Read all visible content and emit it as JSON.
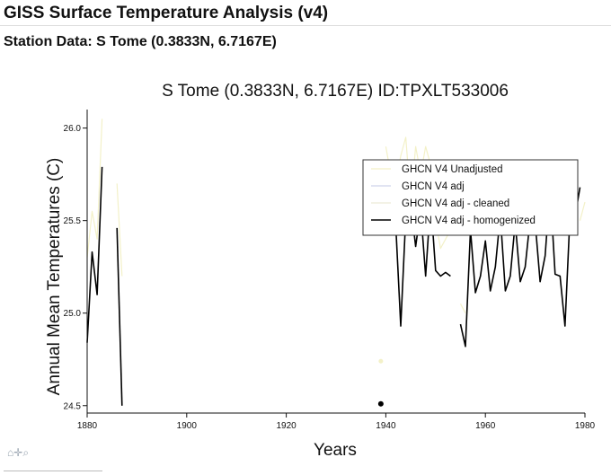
{
  "header": {
    "title": "GISS Surface Temperature Analysis (v4)",
    "subtitle": "Station Data: S Tome (0.3833N, 6.7167E)"
  },
  "toolbar": {
    "home_icon": "⌂",
    "pan_icon": "✛",
    "zoom_icon": "⌕"
  },
  "chart_data": {
    "type": "line",
    "title": "S Tome (0.3833N, 6.7167E) ID:TPXLT533006",
    "xlabel": "Years",
    "ylabel": "Annual Mean Temperatures (C)",
    "xlim": [
      1880,
      1980
    ],
    "ylim": [
      24.46,
      26.1
    ],
    "xticks": [
      1880,
      1900,
      1920,
      1940,
      1960,
      1980
    ],
    "yticks": [
      24.5,
      25.0,
      25.5,
      26.0
    ],
    "ytick_labels": [
      "24.5",
      "25.0",
      "25.5",
      "26.0"
    ],
    "legend_position": "top-right",
    "grid": false,
    "series": [
      {
        "name": "GHCN V4 Unadjusted",
        "color": "#f3f1c8",
        "width": 1.2,
        "segments": [
          [
            [
              1880,
              25.3
            ],
            [
              1881,
              25.55
            ],
            [
              1882,
              25.4
            ],
            [
              1883,
              26.05
            ]
          ],
          [
            [
              1886,
              25.7
            ],
            [
              1887,
              25.2
            ]
          ],
          [
            [
              1940,
              25.9
            ],
            [
              1941,
              25.75
            ],
            [
              1942,
              25.7
            ],
            [
              1943,
              25.85
            ],
            [
              1944,
              25.95
            ],
            [
              1945,
              25.6
            ],
            [
              1946,
              25.9
            ],
            [
              1947,
              25.75
            ],
            [
              1948,
              25.9
            ],
            [
              1949,
              25.8
            ],
            [
              1950,
              25.5
            ],
            [
              1951,
              25.35
            ],
            [
              1952,
              25.4
            ],
            [
              1953,
              25.45
            ],
            [
              1954,
              25.45
            ]
          ],
          [
            [
              1955,
              25.05
            ],
            [
              1956,
              25.0
            ]
          ],
          [
            [
              1979,
              25.5
            ],
            [
              1980,
              25.6
            ]
          ]
        ],
        "points": [
          [
            1939,
            24.74
          ]
        ]
      },
      {
        "name": "GHCN V4 adj",
        "color": "#cfd3ea",
        "width": 1.0,
        "segments": [],
        "points": []
      },
      {
        "name": "GHCN V4 adj - cleaned",
        "color": "#ece9d6",
        "width": 1.0,
        "segments": [],
        "points": []
      },
      {
        "name": "GHCN V4 adj - homogenized",
        "color": "#000000",
        "width": 1.6,
        "segments": [
          [
            [
              1880,
              24.84
            ],
            [
              1881,
              25.33
            ],
            [
              1882,
              25.1
            ],
            [
              1883,
              25.79
            ]
          ],
          [
            [
              1886,
              25.46
            ],
            [
              1887,
              24.5
            ]
          ],
          [
            [
              1941,
              25.51
            ],
            [
              1942,
              25.47
            ],
            [
              1943,
              24.93
            ],
            [
              1944,
              25.52
            ],
            [
              1945,
              25.59
            ],
            [
              1946,
              25.36
            ],
            [
              1947,
              25.56
            ],
            [
              1948,
              25.2
            ],
            [
              1949,
              25.61
            ],
            [
              1950,
              25.23
            ],
            [
              1951,
              25.2
            ],
            [
              1952,
              25.22
            ],
            [
              1953,
              25.2
            ]
          ],
          [
            [
              1955,
              24.94
            ],
            [
              1956,
              24.82
            ],
            [
              1957,
              25.45
            ],
            [
              1958,
              25.11
            ],
            [
              1959,
              25.2
            ],
            [
              1960,
              25.39
            ],
            [
              1961,
              25.12
            ],
            [
              1962,
              25.25
            ],
            [
              1963,
              25.53
            ],
            [
              1964,
              25.12
            ],
            [
              1965,
              25.2
            ],
            [
              1966,
              25.49
            ],
            [
              1967,
              25.17
            ],
            [
              1968,
              25.25
            ],
            [
              1969,
              25.51
            ],
            [
              1970,
              25.49
            ],
            [
              1971,
              25.17
            ],
            [
              1972,
              25.31
            ],
            [
              1973,
              25.68
            ],
            [
              1974,
              25.21
            ],
            [
              1975,
              25.2
            ],
            [
              1976,
              24.93
            ],
            [
              1977,
              25.53
            ],
            [
              1978,
              25.52
            ],
            [
              1979,
              25.68
            ]
          ]
        ],
        "points": [
          [
            1939,
            24.51
          ]
        ]
      }
    ]
  }
}
